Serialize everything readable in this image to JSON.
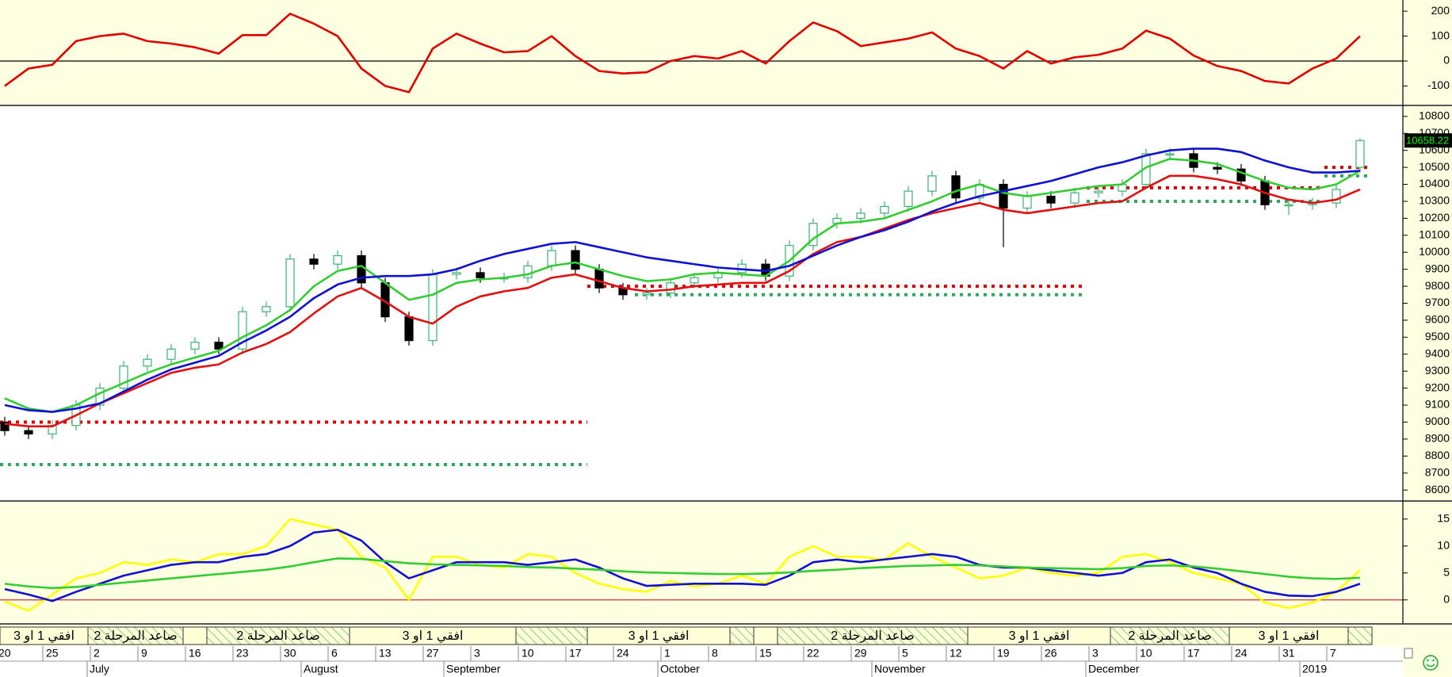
{
  "chart_data": [
    {
      "type": "line",
      "ylim": [
        -175,
        245
      ],
      "yticks": [
        200,
        100,
        0,
        -100
      ],
      "reference_line": 0,
      "reference_color": "#000000",
      "series": [
        {
          "color": "#e00000",
          "values": [
            -100,
            -30,
            -15,
            80,
            100,
            110,
            80,
            70,
            55,
            30,
            104,
            104,
            190,
            150,
            100,
            -30,
            -100,
            -125,
            50,
            110,
            70,
            35,
            40,
            100,
            20,
            -40,
            -50,
            -45,
            0,
            20,
            10,
            40,
            -10,
            80,
            155,
            120,
            60,
            75,
            90,
            115,
            50,
            20,
            -30,
            40,
            -10,
            15,
            25,
            50,
            122,
            90,
            22,
            -20,
            -40,
            -80,
            -90,
            -30,
            10,
            100
          ]
        }
      ]
    },
    {
      "type": "candlestick",
      "ylim": [
        8540,
        10860
      ],
      "yticks": [
        8600,
        8700,
        8800,
        8900,
        9000,
        9100,
        9200,
        9300,
        9400,
        9500,
        9600,
        9700,
        9800,
        9900,
        10000,
        10100,
        10200,
        10300,
        10400,
        10500,
        10600,
        10700,
        10800
      ],
      "categories": [
        "20",
        null,
        "25",
        null,
        "2",
        null,
        "9",
        null,
        "16",
        null,
        "23",
        null,
        "30",
        null,
        "6",
        null,
        "13",
        null,
        "27",
        null,
        "3",
        null,
        "10",
        null,
        "17",
        null,
        "24",
        null,
        "1",
        null,
        "8",
        null,
        "15",
        null,
        "22",
        null,
        "29",
        null,
        "5",
        null,
        "12",
        null,
        "19",
        null,
        "26",
        null,
        "3",
        null,
        "10",
        null,
        "17",
        null,
        "24",
        null,
        "31",
        null,
        "7",
        null
      ],
      "months": [
        null,
        null,
        null,
        null,
        "July",
        null,
        null,
        null,
        null,
        null,
        null,
        null,
        null,
        "August",
        null,
        null,
        null,
        null,
        null,
        "September",
        null,
        null,
        null,
        null,
        null,
        null,
        null,
        null,
        "October",
        null,
        null,
        null,
        null,
        null,
        null,
        null,
        null,
        "November",
        null,
        null,
        null,
        null,
        null,
        null,
        null,
        null,
        "December",
        null,
        null,
        null,
        null,
        null,
        null,
        null,
        null,
        "2019",
        null,
        null
      ],
      "up_color": "#3cb371",
      "down_color": "#000000",
      "open": [
        9000,
        8950,
        8930,
        8980,
        9100,
        9200,
        9330,
        9370,
        9430,
        9470,
        9430,
        9650,
        9680,
        9960,
        9930,
        9980,
        9820,
        9620,
        9480,
        9870,
        9880,
        9850,
        9850,
        9920,
        10010,
        9900,
        9790,
        9750,
        9760,
        9820,
        9850,
        9880,
        9930,
        9860,
        10040,
        10170,
        10200,
        10230,
        10270,
        10360,
        10450,
        10320,
        10400,
        10260,
        10330,
        10290,
        10350,
        10360,
        10400,
        10580,
        10580,
        10500,
        10490,
        10420,
        10280,
        10280,
        10290,
        10500
      ],
      "high": [
        9030,
        8980,
        9010,
        9130,
        9230,
        9360,
        9400,
        9460,
        9500,
        9500,
        9680,
        9710,
        9990,
        9990,
        10010,
        10010,
        9850,
        9650,
        9900,
        9910,
        9910,
        9880,
        9950,
        10040,
        10040,
        9930,
        9820,
        9790,
        9850,
        9880,
        9910,
        9960,
        9960,
        10070,
        10200,
        10230,
        10260,
        10300,
        10390,
        10480,
        10480,
        10430,
        10430,
        10360,
        10360,
        10380,
        10390,
        10430,
        10610,
        10610,
        10610,
        10530,
        10520,
        10450,
        10310,
        10320,
        10400,
        10670
      ],
      "low": [
        8920,
        8900,
        8900,
        8950,
        9070,
        9170,
        9300,
        9340,
        9400,
        9400,
        9400,
        9620,
        9650,
        9900,
        9900,
        9790,
        9590,
        9450,
        9450,
        9840,
        9820,
        9820,
        9820,
        9890,
        9870,
        9760,
        9720,
        9720,
        9730,
        9790,
        9820,
        9850,
        9830,
        9830,
        10010,
        10140,
        10170,
        10200,
        10240,
        10330,
        10290,
        10290,
        10030,
        10230,
        10260,
        10260,
        10320,
        10330,
        10370,
        10550,
        10470,
        10460,
        10390,
        10250,
        10220,
        10250,
        10260,
        10470
      ],
      "close": [
        8950,
        8930,
        8980,
        9100,
        9200,
        9330,
        9370,
        9430,
        9470,
        9430,
        9650,
        9680,
        9960,
        9930,
        9980,
        9820,
        9620,
        9480,
        9870,
        9880,
        9850,
        9850,
        9920,
        10010,
        9900,
        9790,
        9750,
        9760,
        9820,
        9850,
        9880,
        9930,
        9860,
        10040,
        10170,
        10200,
        10230,
        10270,
        10360,
        10450,
        10320,
        10400,
        10260,
        10330,
        10290,
        10350,
        10360,
        10400,
        10580,
        10580,
        10500,
        10490,
        10420,
        10280,
        10280,
        10290,
        10370,
        10658.22
      ],
      "series": [
        {
          "color": "#e01010",
          "values": [
            8990,
            8975,
            8975,
            9040,
            9110,
            9170,
            9230,
            9290,
            9320,
            9340,
            9410,
            9460,
            9530,
            9640,
            9740,
            9790,
            9710,
            9620,
            9580,
            9680,
            9740,
            9770,
            9790,
            9850,
            9870,
            9830,
            9790,
            9770,
            9780,
            9800,
            9810,
            9820,
            9820,
            9890,
            9990,
            10060,
            10090,
            10140,
            10190,
            10230,
            10260,
            10290,
            10250,
            10230,
            10250,
            10270,
            10290,
            10300,
            10380,
            10450,
            10450,
            10430,
            10400,
            10350,
            10310,
            10290,
            10310,
            10370
          ]
        },
        {
          "color": "#33cc33",
          "values": [
            9140,
            9080,
            9060,
            9100,
            9170,
            9230,
            9290,
            9340,
            9380,
            9420,
            9500,
            9570,
            9660,
            9800,
            9890,
            9920,
            9820,
            9720,
            9750,
            9820,
            9840,
            9850,
            9870,
            9920,
            9940,
            9900,
            9860,
            9830,
            9840,
            9870,
            9880,
            9870,
            9860,
            9950,
            10080,
            10170,
            10180,
            10200,
            10250,
            10300,
            10360,
            10400,
            10350,
            10330,
            10350,
            10370,
            10390,
            10400,
            10500,
            10550,
            10540,
            10520,
            10470,
            10420,
            10380,
            10370,
            10400,
            10480
          ]
        },
        {
          "color": "#1010d0",
          "values": [
            9100,
            9070,
            9060,
            9080,
            9110,
            9180,
            9250,
            9310,
            9350,
            9390,
            9470,
            9540,
            9620,
            9730,
            9810,
            9850,
            9860,
            9860,
            9870,
            9900,
            9950,
            9990,
            10020,
            10050,
            10060,
            10030,
            10000,
            9970,
            9950,
            9930,
            9910,
            9900,
            9890,
            9920,
            9980,
            10040,
            10090,
            10130,
            10180,
            10240,
            10290,
            10330,
            10360,
            10390,
            10420,
            10460,
            10500,
            10530,
            10570,
            10600,
            10610,
            10610,
            10590,
            10540,
            10500,
            10470,
            10470,
            10480
          ]
        }
      ],
      "levels": [
        {
          "value": 9000,
          "color": "#e00000",
          "start": 0,
          "end": 25
        },
        {
          "value": 8750,
          "color": "#2eaa5e",
          "start": 0,
          "end": 25
        },
        {
          "value": 9800,
          "color": "#e00000",
          "start": 25,
          "end": 46
        },
        {
          "value": 9750,
          "color": "#2eaa5e",
          "start": 27,
          "end": 46
        },
        {
          "value": 10380,
          "color": "#e00000",
          "start": 46,
          "end": 56
        },
        {
          "value": 10300,
          "color": "#2eaa5e",
          "start": 46,
          "end": 56
        },
        {
          "value": 10500,
          "color": "#e00000",
          "start": 56,
          "end": 58
        },
        {
          "value": 10450,
          "color": "#2eaa5e",
          "start": 56,
          "end": 58
        }
      ]
    },
    {
      "type": "line",
      "ylim": [
        -4.3,
        18.2
      ],
      "yticks": [
        15,
        10,
        5,
        0
      ],
      "reference_line": 0,
      "reference_color": "#cc3333",
      "series": [
        {
          "color": "#ffff00",
          "values": [
            -0.3,
            -2,
            1,
            4,
            5,
            7,
            6.5,
            7.5,
            7,
            8.5,
            8.5,
            10,
            15,
            14,
            13,
            8,
            6,
            0,
            8,
            8,
            6.5,
            6,
            8.5,
            8,
            5,
            3,
            2,
            1.5,
            3.5,
            2.5,
            3,
            4.5,
            3,
            8,
            10,
            8,
            8,
            7.5,
            10.5,
            8,
            6,
            4,
            4.5,
            6,
            5,
            4.5,
            5,
            8,
            8.5,
            7,
            5,
            4,
            3,
            -0.5,
            -1.5,
            -0.5,
            1.5,
            5.5
          ]
        },
        {
          "color": "#1010d0",
          "values": [
            2,
            1,
            -0.2,
            1.5,
            3,
            4.5,
            5.5,
            6.5,
            7,
            7,
            8,
            8.5,
            10,
            12.5,
            13,
            11,
            7,
            4,
            5.5,
            7,
            7,
            7,
            6.5,
            7,
            7.5,
            6,
            4,
            2.6,
            2.8,
            3,
            3,
            3,
            2.8,
            4.5,
            7,
            7.5,
            7,
            7.5,
            8,
            8.5,
            8,
            6.5,
            6,
            6,
            5.5,
            5,
            4.5,
            5,
            7,
            7.5,
            6,
            5,
            3,
            1.5,
            0.8,
            0.7,
            1.5,
            3
          ]
        },
        {
          "color": "#33cc33",
          "values": [
            3,
            2.5,
            2.2,
            2.4,
            2.8,
            3.2,
            3.6,
            4,
            4.4,
            4.8,
            5.2,
            5.6,
            6.2,
            7,
            7.7,
            7.6,
            7.2,
            6.8,
            6.6,
            6.5,
            6.4,
            6.3,
            6.1,
            6,
            5.8,
            5.6,
            5.3,
            5.1,
            5,
            4.9,
            4.8,
            4.8,
            4.9,
            5.1,
            5.4,
            5.6,
            5.9,
            6.1,
            6.3,
            6.4,
            6.5,
            6.4,
            6.2,
            6,
            5.9,
            5.8,
            5.7,
            5.9,
            6.3,
            6.4,
            6.2,
            5.8,
            5.3,
            4.8,
            4.3,
            4,
            3.9,
            4.1
          ]
        }
      ]
    },
    {
      "type": "stages",
      "segments": [
        {
          "label": "افقي 1 او 3",
          "hatched": false,
          "start": 0,
          "end": 4
        },
        {
          "label": "صاعد المرحلة 2",
          "hatched": true,
          "start": 4,
          "end": 8
        },
        {
          "hatched": false,
          "start": 8,
          "end": 9
        },
        {
          "label": "صاعد المرحلة 2",
          "hatched": true,
          "start": 9,
          "end": 15
        },
        {
          "label": "افقي 1 او 3",
          "hatched": false,
          "start": 15,
          "end": 22
        },
        {
          "hatched": true,
          "start": 22,
          "end": 25
        },
        {
          "label": "افقي 1 او 3",
          "hatched": false,
          "start": 25,
          "end": 31
        },
        {
          "hatched": true,
          "start": 31,
          "end": 32
        },
        {
          "hatched": false,
          "start": 32,
          "end": 33
        },
        {
          "label": "صاعد المرحلة 2",
          "hatched": true,
          "start": 33,
          "end": 41
        },
        {
          "label": "افقي 1 او 3",
          "hatched": false,
          "start": 41,
          "end": 47
        },
        {
          "label": "صاعد المرحلة 2",
          "hatched": true,
          "start": 47,
          "end": 52
        },
        {
          "label": "افقي 1 او 3",
          "hatched": false,
          "start": 52,
          "end": 57
        },
        {
          "hatched": true,
          "start": 57,
          "end": 58
        }
      ]
    }
  ]
}
